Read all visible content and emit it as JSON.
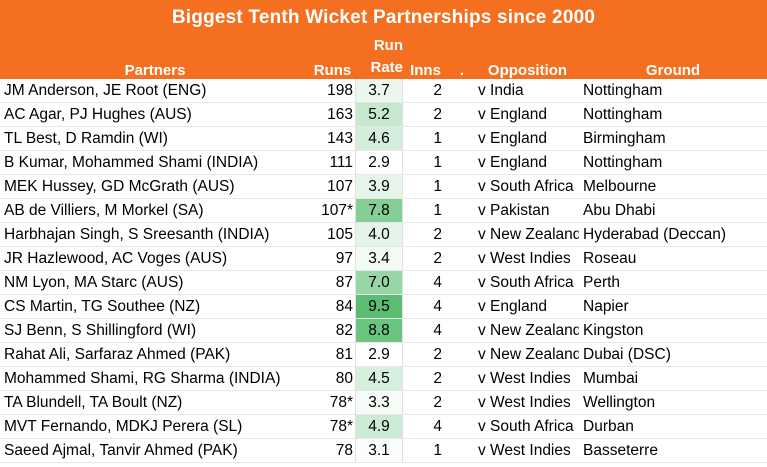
{
  "title": "Biggest Tenth Wicket Partnerships since 2000",
  "headers": {
    "partners": "Partners",
    "runs": "Runs",
    "run_rate_top": "Run",
    "run_rate_bottom": "Rate",
    "inns": "Inns",
    "dot": ".",
    "opposition": "Opposition",
    "ground": "Ground"
  },
  "rate_color_scale": {
    "low": "#ffffff",
    "high": "#5bbd72",
    "min": 2.9,
    "max": 9.5
  },
  "rows": [
    {
      "partners": "JM Anderson, JE Root (ENG)",
      "runs": "198",
      "rate": "3.7",
      "inns": "2",
      "opposition": "v India",
      "ground": "Nottingham"
    },
    {
      "partners": "AC Agar, PJ Hughes (AUS)",
      "runs": "163",
      "rate": "5.2",
      "inns": "2",
      "opposition": "v England",
      "ground": "Nottingham"
    },
    {
      "partners": "TL Best, D Ramdin (WI)",
      "runs": "143",
      "rate": "4.6",
      "inns": "1",
      "opposition": "v England",
      "ground": "Birmingham"
    },
    {
      "partners": "B Kumar, Mohammed Shami (INDIA)",
      "runs": "111",
      "rate": "2.9",
      "inns": "1",
      "opposition": "v England",
      "ground": "Nottingham"
    },
    {
      "partners": "MEK Hussey, GD McGrath (AUS)",
      "runs": "107",
      "rate": "3.9",
      "inns": "1",
      "opposition": "v South Africa",
      "ground": "Melbourne"
    },
    {
      "partners": "AB de Villiers, M Morkel (SA)",
      "runs": "107*",
      "rate": "7.8",
      "inns": "1",
      "opposition": "v Pakistan",
      "ground": "Abu Dhabi"
    },
    {
      "partners": "Harbhajan Singh, S Sreesanth (INDIA)",
      "runs": "105",
      "rate": "4.0",
      "inns": "2",
      "opposition": "v New Zealand",
      "ground": "Hyderabad (Deccan)"
    },
    {
      "partners": "JR Hazlewood, AC Voges (AUS)",
      "runs": "97",
      "rate": "3.4",
      "inns": "2",
      "opposition": "v West Indies",
      "ground": "Roseau"
    },
    {
      "partners": "NM Lyon, MA Starc (AUS)",
      "runs": "87",
      "rate": "7.0",
      "inns": "4",
      "opposition": "v South Africa",
      "ground": "Perth"
    },
    {
      "partners": "CS Martin, TG Southee (NZ)",
      "runs": "84",
      "rate": "9.5",
      "inns": "4",
      "opposition": "v England",
      "ground": "Napier"
    },
    {
      "partners": "SJ Benn, S Shillingford (WI)",
      "runs": "82",
      "rate": "8.8",
      "inns": "4",
      "opposition": "v New Zealand",
      "ground": "Kingston"
    },
    {
      "partners": "Rahat Ali, Sarfaraz Ahmed (PAK)",
      "runs": "81",
      "rate": "2.9",
      "inns": "2",
      "opposition": "v New Zealand",
      "ground": "Dubai (DSC)"
    },
    {
      "partners": "Mohammed Shami, RG Sharma (INDIA)",
      "runs": "80",
      "rate": "4.5",
      "inns": "2",
      "opposition": "v West Indies",
      "ground": "Mumbai"
    },
    {
      "partners": "TA Blundell, TA Boult (NZ)",
      "runs": "78*",
      "rate": "3.3",
      "inns": "2",
      "opposition": "v West Indies",
      "ground": "Wellington"
    },
    {
      "partners": "MVT Fernando, MDKJ Perera (SL)",
      "runs": "78*",
      "rate": "4.9",
      "inns": "4",
      "opposition": "v South Africa",
      "ground": "Durban"
    },
    {
      "partners": "Saeed Ajmal, Tanvir Ahmed (PAK)",
      "runs": "78",
      "rate": "3.1",
      "inns": "1",
      "opposition": "v West Indies",
      "ground": "Basseterre"
    }
  ]
}
